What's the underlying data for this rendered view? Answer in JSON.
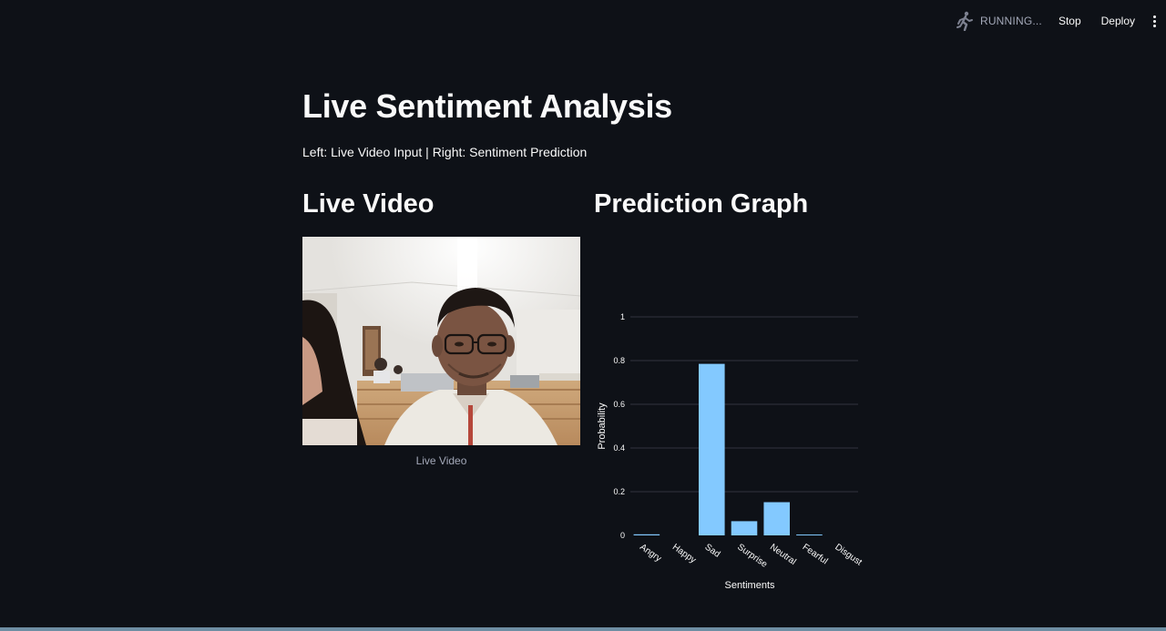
{
  "toolbar": {
    "status": "RUNNING...",
    "stop_label": "Stop",
    "deploy_label": "Deploy",
    "running_icon": "running-man-icon",
    "menu_icon": "kebab-menu-icon"
  },
  "page": {
    "title": "Live Sentiment Analysis",
    "caption": "Left: Live Video Input | Right: Sentiment Prediction"
  },
  "left_column": {
    "heading": "Live Video",
    "video_caption": "Live Video"
  },
  "right_column": {
    "heading": "Prediction Graph"
  },
  "chart_data": {
    "type": "bar",
    "categories": [
      "Angry",
      "Happy",
      "Sad",
      "Surprise",
      "Neutral",
      "Fearful",
      "Disgust"
    ],
    "values": [
      0.005,
      0.0,
      0.785,
      0.065,
      0.152,
      0.004,
      0.0
    ],
    "xlabel": "Sentiments",
    "ylabel": "Probability",
    "ylim": [
      0,
      1
    ],
    "yticks": [
      "0",
      "0.2",
      "0.4",
      "0.6",
      "0.8",
      "1"
    ],
    "ytick_values": [
      0,
      0.2,
      0.4,
      0.6,
      0.8,
      1
    ],
    "grid": true,
    "bar_color": "#83c9ff"
  },
  "colors": {
    "background": "#0e1117",
    "text": "#fafafa",
    "muted": "#a3a8b8",
    "bar": "#83c9ff",
    "bottom_bar": "#6e8ea3"
  }
}
